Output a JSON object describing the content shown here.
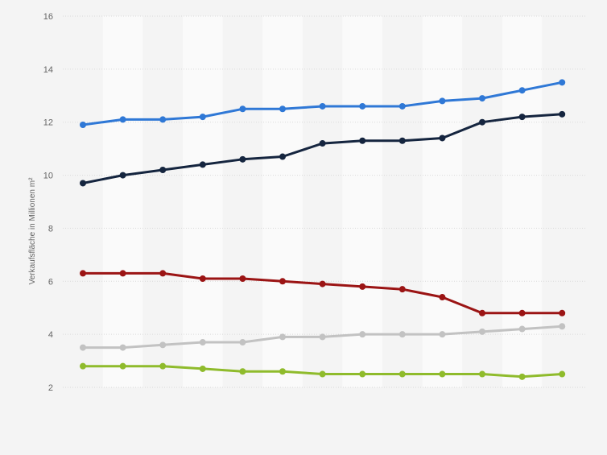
{
  "chart_data": {
    "type": "line",
    "title": "",
    "xlabel": "",
    "ylabel": "Verkaufsfläche in Millionen m²",
    "ylim": [
      2,
      16
    ],
    "yticks": [
      2,
      4,
      6,
      8,
      10,
      12,
      14,
      16
    ],
    "grid": true,
    "legend": "none",
    "series": [
      {
        "color": "#2f78d6",
        "values": [
          11.9,
          12.1,
          12.1,
          12.2,
          12.5,
          12.5,
          12.6,
          12.6,
          12.6,
          12.8,
          12.9,
          13.2,
          13.5
        ]
      },
      {
        "color": "#15253f",
        "values": [
          9.7,
          10.0,
          10.2,
          10.4,
          10.6,
          10.7,
          11.2,
          11.3,
          11.3,
          11.4,
          12.0,
          12.2,
          12.3
        ]
      },
      {
        "color": "#9b1414",
        "values": [
          6.3,
          6.3,
          6.3,
          6.1,
          6.1,
          6.0,
          5.9,
          5.8,
          5.7,
          5.4,
          4.8,
          4.8,
          4.8
        ]
      },
      {
        "color": "#c2c2c2",
        "values": [
          3.5,
          3.5,
          3.6,
          3.7,
          3.7,
          3.9,
          3.9,
          4.0,
          4.0,
          4.0,
          4.1,
          4.2,
          4.3
        ]
      },
      {
        "color": "#8fbb2c",
        "values": [
          2.8,
          2.8,
          2.8,
          2.7,
          2.6,
          2.6,
          2.5,
          2.5,
          2.5,
          2.5,
          2.5,
          2.4,
          2.5
        ]
      }
    ]
  }
}
